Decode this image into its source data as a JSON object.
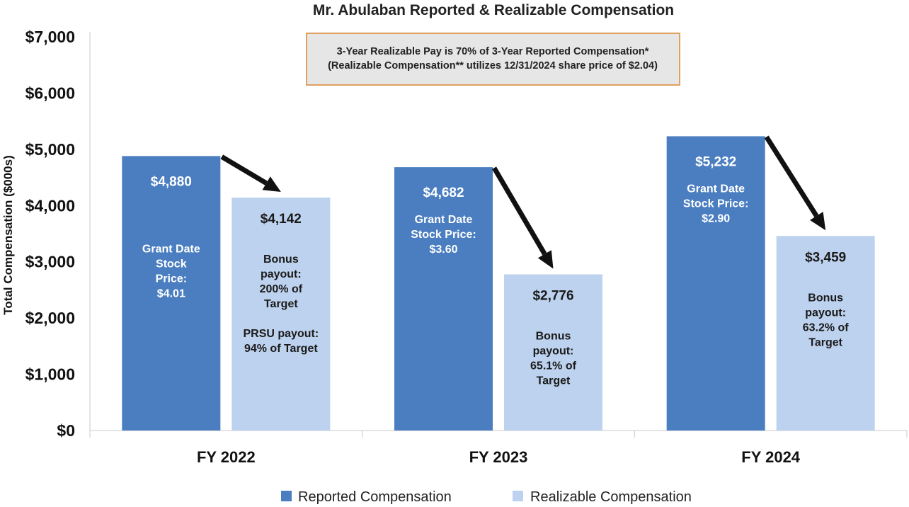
{
  "chart_data": {
    "type": "bar",
    "title": "Mr. Abulaban Reported & Realizable Compensation",
    "ylabel": "Total Compensation ($000s)",
    "xlabel": "",
    "ylim": [
      0,
      7000
    ],
    "yticks": [
      0,
      1000,
      2000,
      3000,
      4000,
      5000,
      6000,
      7000
    ],
    "ytick_labels": [
      "$0",
      "$1,000",
      "$2,000",
      "$3,000",
      "$4,000",
      "$5,000",
      "$6,000",
      "$7,000"
    ],
    "categories": [
      "FY 2022",
      "FY 2023",
      "FY 2024"
    ],
    "series": [
      {
        "name": "Reported Compensation",
        "color": "#4A7EC0",
        "values": [
          4880,
          4682,
          5232
        ],
        "labels": [
          "$4,880",
          "$4,682",
          "$5,232"
        ],
        "notes": [
          [
            "Grant Date",
            "Stock",
            "Price:",
            "$4.01"
          ],
          [
            "Grant Date",
            "Stock Price:",
            "$3.60"
          ],
          [
            "Grant Date",
            "Stock Price:",
            "$2.90"
          ]
        ]
      },
      {
        "name": "Realizable Compensation",
        "color": "#BDD2EE",
        "values": [
          4142,
          2776,
          3459
        ],
        "labels": [
          "$4,142",
          "$2,776",
          "$3,459"
        ],
        "notes": [
          [
            "Bonus",
            "payout:",
            "200% of",
            "Target",
            "",
            "PRSU payout:",
            "94% of Target"
          ],
          [
            "Bonus",
            "payout:",
            "65.1% of",
            "Target"
          ],
          [
            "Bonus",
            "payout:",
            "63.2% of",
            "Target"
          ]
        ]
      }
    ],
    "annotation": {
      "lines": [
        "3-Year Realizable Pay is 70% of 3-Year Reported Compensation*",
        "(Realizable Compensation** utilizes 12/31/2024 share price of $2.04)"
      ],
      "fill": "#E6E6E6",
      "border": "#E0A060"
    },
    "legend": "bottom-center",
    "grid": false
  }
}
